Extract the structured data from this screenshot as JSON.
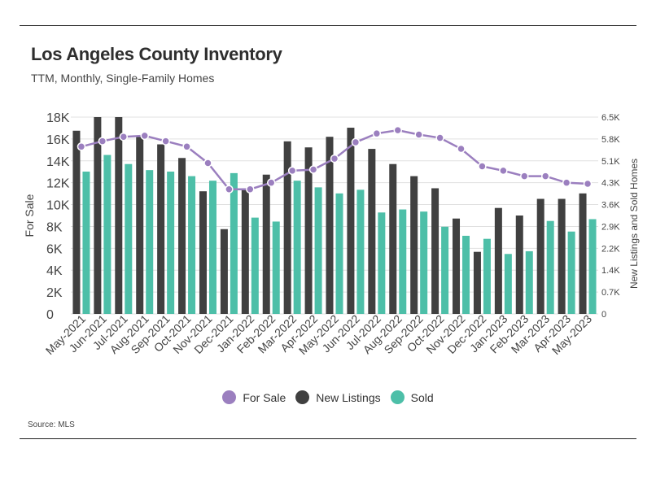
{
  "header": {
    "title": "Los Angeles County Inventory",
    "subtitle": "TTM, Monthly, Single-Family Homes"
  },
  "footer": {
    "source": "Source:  MLS"
  },
  "legend": {
    "items": [
      {
        "label": "For Sale",
        "color": "#9b7fbf"
      },
      {
        "label": "New Listings",
        "color": "#404040"
      },
      {
        "label": "Sold",
        "color": "#4dbfa8"
      }
    ]
  },
  "chart_data": {
    "type": "bar",
    "ylabel": "For Sale",
    "y2label": "New Listings and Sold Homes",
    "ylim": [
      0,
      18000
    ],
    "y2lim": [
      0,
      6500
    ],
    "yticks": [
      "0",
      "2K",
      "4K",
      "6K",
      "8K",
      "10K",
      "12K",
      "14K",
      "16K",
      "18K"
    ],
    "y2ticks": [
      "0",
      "0.7K",
      "1.4K",
      "2.2K",
      "2.9K",
      "3.6K",
      "4.3K",
      "5.1K",
      "5.8K",
      "6.5K"
    ],
    "grid": true,
    "legend_position": "bottom",
    "categories": [
      "May-2021",
      "Jun-2021",
      "Jul-2021",
      "Aug-2021",
      "Sep-2021",
      "Oct-2021",
      "Nov-2021",
      "Dec-2021",
      "Jan-2022",
      "Feb-2022",
      "Mar-2022",
      "Apr-2022",
      "May-2022",
      "Jun-2022",
      "Jul-2022",
      "Aug-2022",
      "Sep-2022",
      "Oct-2022",
      "Nov-2022",
      "Dec-2022",
      "Jan-2023",
      "Feb-2023",
      "Mar-2023",
      "Apr-2023",
      "May-2023"
    ],
    "series": [
      {
        "name": "For Sale",
        "type": "line",
        "axis": "left",
        "color": "#9b7fbf",
        "values": [
          15300,
          15800,
          16200,
          16300,
          15800,
          15300,
          13800,
          11400,
          11400,
          12000,
          13100,
          13200,
          14200,
          15700,
          16500,
          16800,
          16400,
          16100,
          15100,
          13500,
          13100,
          12600,
          12600,
          12000,
          11900
        ]
      },
      {
        "name": "New Listings",
        "type": "bar",
        "axis": "right",
        "color": "#404040",
        "values": [
          6050,
          6500,
          6500,
          5850,
          5600,
          5150,
          4050,
          2800,
          4150,
          4600,
          5700,
          5500,
          5850,
          6150,
          5450,
          4950,
          4550,
          4150,
          3150,
          2050,
          3500,
          3250,
          3800,
          3800,
          3980
        ]
      },
      {
        "name": "Sold",
        "type": "bar",
        "axis": "right",
        "color": "#4dbfa8",
        "values": [
          4700,
          5250,
          4950,
          4750,
          4700,
          4550,
          4400,
          4650,
          3180,
          3050,
          4400,
          4180,
          3980,
          4100,
          3350,
          3450,
          3380,
          2880,
          2580,
          2480,
          1980,
          2070,
          3070,
          2720,
          3130
        ]
      }
    ]
  }
}
